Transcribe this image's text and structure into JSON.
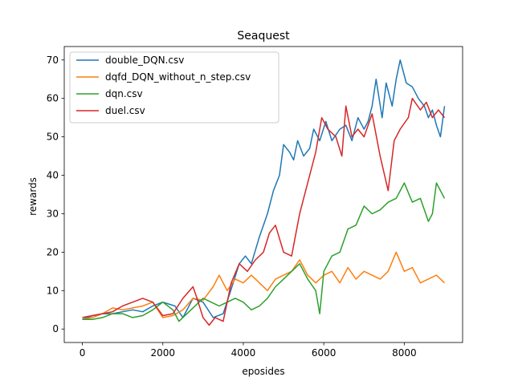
{
  "chart_data": {
    "type": "line",
    "title": "Seaquest",
    "xlabel": "eposides",
    "ylabel": "rewards",
    "xlim": [
      -450,
      9450
    ],
    "ylim": [
      -3.5,
      73.5
    ],
    "xticks": [
      0,
      2000,
      4000,
      6000,
      8000
    ],
    "yticks": [
      0,
      10,
      20,
      30,
      40,
      50,
      60,
      70
    ],
    "legend_position": "top-left",
    "series": [
      {
        "name": "double_DQN.csv",
        "color": "#1f77b4",
        "points": [
          [
            0,
            2.5
          ],
          [
            250,
            3.5
          ],
          [
            500,
            4
          ],
          [
            750,
            4
          ],
          [
            1000,
            4.5
          ],
          [
            1250,
            5
          ],
          [
            1500,
            4.5
          ],
          [
            1750,
            6
          ],
          [
            2000,
            7
          ],
          [
            2150,
            6.5
          ],
          [
            2300,
            6
          ],
          [
            2500,
            3
          ],
          [
            2750,
            8
          ],
          [
            3000,
            7
          ],
          [
            3250,
            3
          ],
          [
            3500,
            4
          ],
          [
            3750,
            12
          ],
          [
            3900,
            17
          ],
          [
            4050,
            19
          ],
          [
            4200,
            17
          ],
          [
            4400,
            24
          ],
          [
            4600,
            30
          ],
          [
            4750,
            36
          ],
          [
            4900,
            40
          ],
          [
            5000,
            48
          ],
          [
            5150,
            46
          ],
          [
            5250,
            44
          ],
          [
            5350,
            49
          ],
          [
            5500,
            45
          ],
          [
            5650,
            47
          ],
          [
            5750,
            52
          ],
          [
            5900,
            49
          ],
          [
            6050,
            54
          ],
          [
            6200,
            49
          ],
          [
            6400,
            52
          ],
          [
            6550,
            53
          ],
          [
            6700,
            49
          ],
          [
            6850,
            55
          ],
          [
            7000,
            52
          ],
          [
            7100,
            54
          ],
          [
            7200,
            58
          ],
          [
            7300,
            65
          ],
          [
            7450,
            55
          ],
          [
            7550,
            64
          ],
          [
            7700,
            58
          ],
          [
            7800,
            65
          ],
          [
            7900,
            70
          ],
          [
            8050,
            64
          ],
          [
            8200,
            63
          ],
          [
            8350,
            60
          ],
          [
            8500,
            58
          ],
          [
            8600,
            55
          ],
          [
            8700,
            57
          ],
          [
            8800,
            53
          ],
          [
            8900,
            50
          ],
          [
            9000,
            58
          ]
        ]
      },
      {
        "name": "dqfd_DQN_without_n_step.csv",
        "color": "#ff7f0e",
        "points": [
          [
            0,
            2.5
          ],
          [
            250,
            3
          ],
          [
            500,
            4
          ],
          [
            750,
            5.5
          ],
          [
            1000,
            5
          ],
          [
            1250,
            5.5
          ],
          [
            1500,
            6
          ],
          [
            1750,
            7
          ],
          [
            2000,
            3
          ],
          [
            2250,
            3.5
          ],
          [
            2500,
            5
          ],
          [
            2750,
            8
          ],
          [
            3000,
            7.5
          ],
          [
            3250,
            11
          ],
          [
            3400,
            14
          ],
          [
            3600,
            10
          ],
          [
            3800,
            13
          ],
          [
            4000,
            12
          ],
          [
            4200,
            14
          ],
          [
            4400,
            12
          ],
          [
            4600,
            10
          ],
          [
            4800,
            13
          ],
          [
            5000,
            14
          ],
          [
            5200,
            15
          ],
          [
            5400,
            18
          ],
          [
            5600,
            14
          ],
          [
            5800,
            12
          ],
          [
            6000,
            14
          ],
          [
            6200,
            15
          ],
          [
            6400,
            12
          ],
          [
            6600,
            16
          ],
          [
            6800,
            13
          ],
          [
            7000,
            15
          ],
          [
            7200,
            14
          ],
          [
            7400,
            13
          ],
          [
            7600,
            15
          ],
          [
            7800,
            20
          ],
          [
            8000,
            15
          ],
          [
            8200,
            16
          ],
          [
            8400,
            12
          ],
          [
            8600,
            13
          ],
          [
            8800,
            14
          ],
          [
            9000,
            12
          ]
        ]
      },
      {
        "name": "dqn.csv",
        "color": "#2ca02c",
        "points": [
          [
            0,
            2.5
          ],
          [
            250,
            2.5
          ],
          [
            500,
            3
          ],
          [
            750,
            4
          ],
          [
            1000,
            4
          ],
          [
            1250,
            3
          ],
          [
            1500,
            3.5
          ],
          [
            1750,
            5
          ],
          [
            2000,
            7
          ],
          [
            2250,
            5
          ],
          [
            2400,
            2
          ],
          [
            2600,
            4
          ],
          [
            2800,
            6
          ],
          [
            3000,
            8
          ],
          [
            3200,
            7
          ],
          [
            3400,
            6
          ],
          [
            3600,
            7
          ],
          [
            3800,
            8
          ],
          [
            4000,
            7
          ],
          [
            4200,
            5
          ],
          [
            4400,
            6
          ],
          [
            4600,
            8
          ],
          [
            4800,
            11
          ],
          [
            5000,
            13
          ],
          [
            5200,
            15
          ],
          [
            5400,
            17
          ],
          [
            5600,
            13
          ],
          [
            5800,
            10
          ],
          [
            5900,
            4
          ],
          [
            6000,
            15
          ],
          [
            6200,
            19
          ],
          [
            6400,
            20
          ],
          [
            6600,
            26
          ],
          [
            6800,
            27
          ],
          [
            7000,
            32
          ],
          [
            7200,
            30
          ],
          [
            7400,
            31
          ],
          [
            7600,
            33
          ],
          [
            7800,
            34
          ],
          [
            8000,
            38
          ],
          [
            8200,
            33
          ],
          [
            8400,
            34
          ],
          [
            8600,
            28
          ],
          [
            8700,
            30
          ],
          [
            8800,
            38
          ],
          [
            9000,
            34
          ]
        ]
      },
      {
        "name": "duel.csv",
        "color": "#d62728",
        "points": [
          [
            0,
            3
          ],
          [
            250,
            3.5
          ],
          [
            500,
            4
          ],
          [
            750,
            4.5
          ],
          [
            1000,
            6
          ],
          [
            1250,
            7
          ],
          [
            1500,
            8
          ],
          [
            1750,
            7
          ],
          [
            2000,
            3.5
          ],
          [
            2250,
            4
          ],
          [
            2500,
            8
          ],
          [
            2750,
            11
          ],
          [
            2850,
            8
          ],
          [
            3000,
            3
          ],
          [
            3150,
            1
          ],
          [
            3300,
            3
          ],
          [
            3500,
            2
          ],
          [
            3700,
            12
          ],
          [
            3900,
            17
          ],
          [
            4100,
            15
          ],
          [
            4300,
            18
          ],
          [
            4500,
            20
          ],
          [
            4650,
            25
          ],
          [
            4800,
            27
          ],
          [
            5000,
            20
          ],
          [
            5200,
            19
          ],
          [
            5400,
            30
          ],
          [
            5600,
            38
          ],
          [
            5800,
            46
          ],
          [
            5950,
            55
          ],
          [
            6100,
            52
          ],
          [
            6300,
            50
          ],
          [
            6450,
            45
          ],
          [
            6550,
            58
          ],
          [
            6700,
            50
          ],
          [
            6850,
            52
          ],
          [
            7000,
            50
          ],
          [
            7200,
            56
          ],
          [
            7400,
            45
          ],
          [
            7600,
            36
          ],
          [
            7750,
            49
          ],
          [
            7900,
            52
          ],
          [
            8100,
            55
          ],
          [
            8200,
            60
          ],
          [
            8400,
            57
          ],
          [
            8550,
            59
          ],
          [
            8700,
            55
          ],
          [
            8850,
            57
          ],
          [
            9000,
            55
          ]
        ]
      }
    ]
  }
}
